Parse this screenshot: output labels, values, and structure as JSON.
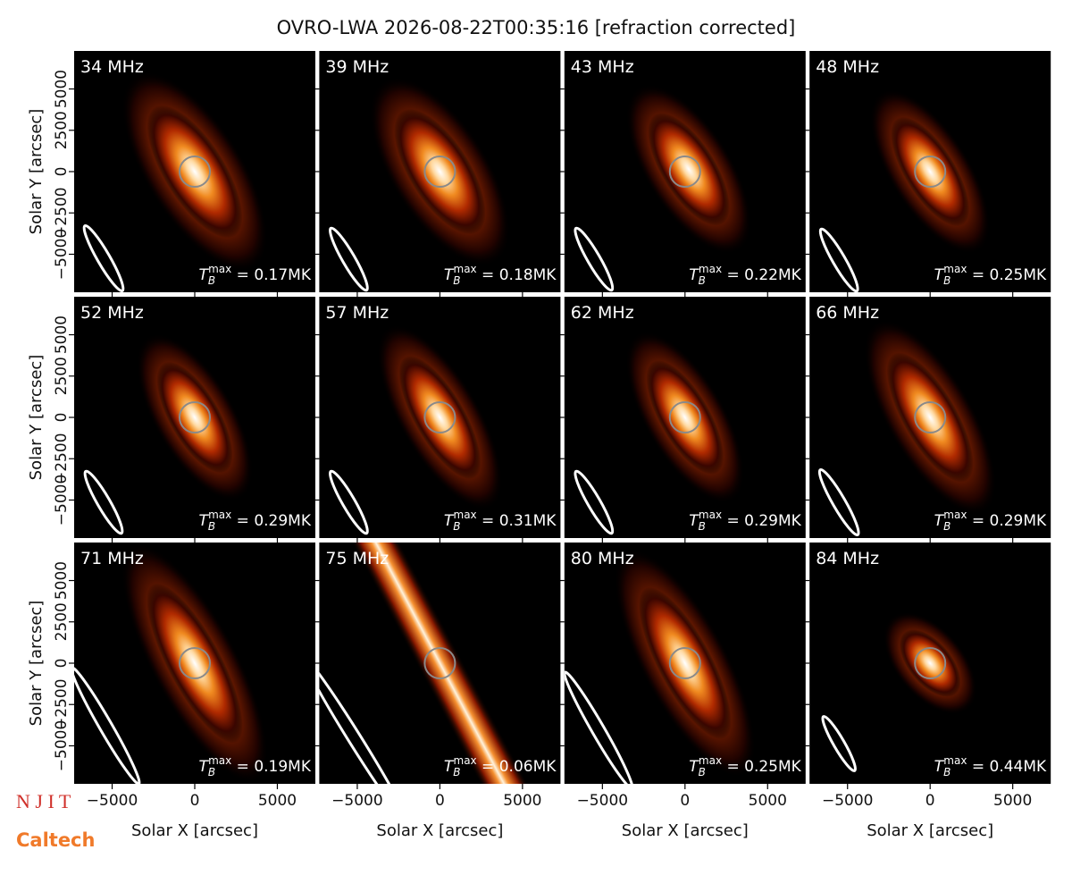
{
  "chart_data": {
    "type": "image-grid",
    "title": "OVRO-LWA 2026-08-22T00:35:16 [refraction corrected]",
    "xlabel": "Solar X [arcsec]",
    "ylabel": "Solar Y [arcsec]",
    "xlim": [
      -7300,
      7300
    ],
    "ylim": [
      -7300,
      7300
    ],
    "xticks": [
      {
        "value": -5000,
        "label": "−5000"
      },
      0,
      5000
    ],
    "yticks": [
      {
        "value": -5000,
        "label": "−5000"
      },
      {
        "value": -2500,
        "label": "−2500"
      },
      0,
      2500,
      5000
    ],
    "tb_symbol": {
      "main": "T",
      "sub": "B",
      "sup": "max",
      "eq": " = "
    },
    "panels": [
      {
        "freq": "34 MHz",
        "tb_max": 0.17,
        "tb_max_label": "0.17MK"
      },
      {
        "freq": "39 MHz",
        "tb_max": 0.18,
        "tb_max_label": "0.18MK"
      },
      {
        "freq": "43 MHz",
        "tb_max": 0.22,
        "tb_max_label": "0.22MK"
      },
      {
        "freq": "48 MHz",
        "tb_max": 0.25,
        "tb_max_label": "0.25MK"
      },
      {
        "freq": "52 MHz",
        "tb_max": 0.29,
        "tb_max_label": "0.29MK"
      },
      {
        "freq": "57 MHz",
        "tb_max": 0.31,
        "tb_max_label": "0.31MK"
      },
      {
        "freq": "62 MHz",
        "tb_max": 0.29,
        "tb_max_label": "0.29MK"
      },
      {
        "freq": "66 MHz",
        "tb_max": 0.29,
        "tb_max_label": "0.29MK"
      },
      {
        "freq": "71 MHz",
        "tb_max": 0.19,
        "tb_max_label": "0.19MK"
      },
      {
        "freq": "75 MHz",
        "tb_max": 0.06,
        "tb_max_label": "0.06MK"
      },
      {
        "freq": "80 MHz",
        "tb_max": 0.25,
        "tb_max_label": "0.25MK"
      },
      {
        "freq": "84 MHz",
        "tb_max": 0.44,
        "tb_max_label": "0.44MK"
      }
    ]
  },
  "logos": {
    "njit": "N J I T",
    "caltech": "Caltech"
  }
}
